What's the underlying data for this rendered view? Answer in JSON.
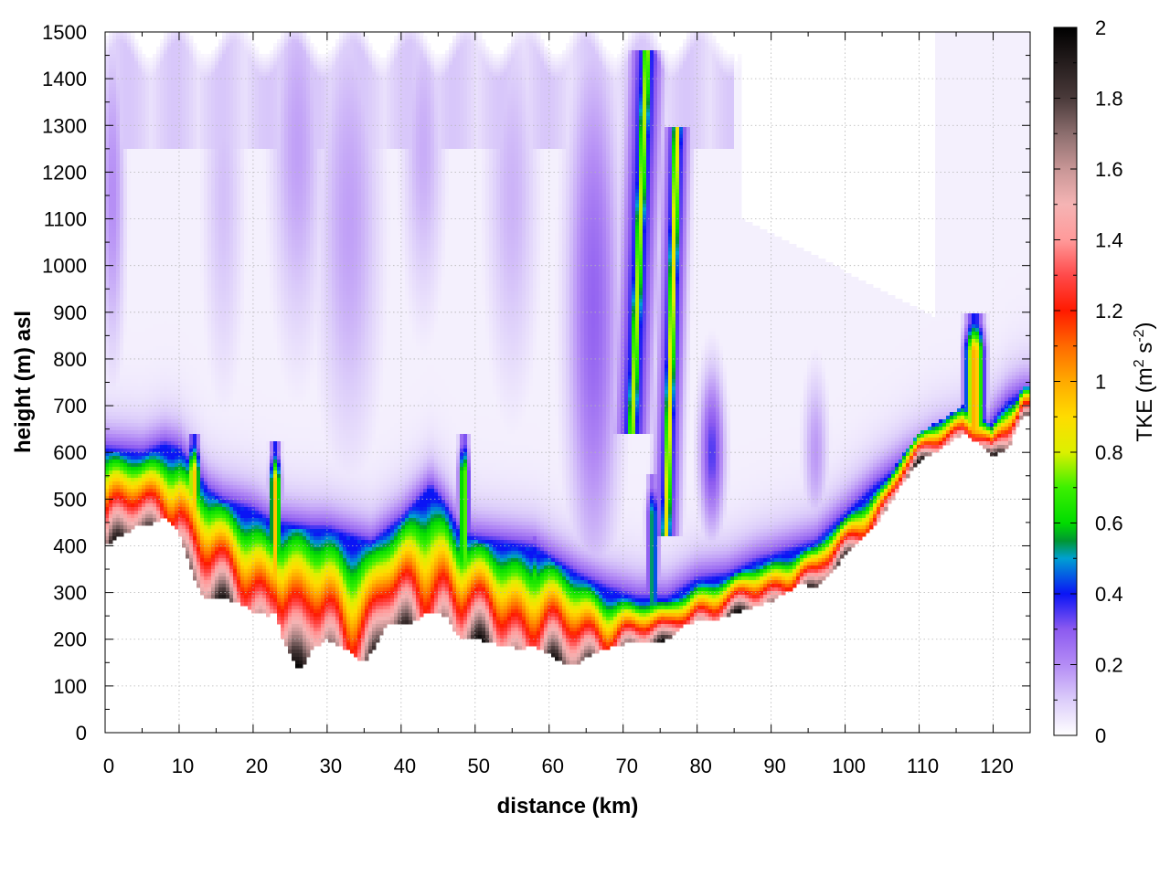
{
  "chart_data": {
    "type": "heatmap",
    "title": "",
    "xlabel": "distance (km)",
    "ylabel": "height (m) asl",
    "xlim": [
      0,
      125
    ],
    "ylim": [
      0,
      1500
    ],
    "x_ticks": [
      0,
      10,
      20,
      30,
      40,
      50,
      60,
      70,
      80,
      90,
      100,
      110,
      120
    ],
    "y_ticks": [
      0,
      100,
      200,
      300,
      400,
      500,
      600,
      700,
      800,
      900,
      1000,
      1100,
      1200,
      1300,
      1400,
      1500
    ],
    "grid": true,
    "colorbar": {
      "label_main": "TKE (m",
      "label_sup1": "2",
      "label_mid": " s",
      "label_sup2": "-2",
      "label_end": ")",
      "range": [
        0,
        2
      ],
      "ticks": [
        "0",
        "0.2",
        "0.4",
        "0.6",
        "0.8",
        "1",
        "1.2",
        "1.4",
        "1.6",
        "1.8",
        "2"
      ],
      "stops": [
        {
          "v": 0.0,
          "color": "#ffffff"
        },
        {
          "v": 0.1,
          "color": "#dccdfa"
        },
        {
          "v": 0.2,
          "color": "#b48cf5"
        },
        {
          "v": 0.3,
          "color": "#8c5af0"
        },
        {
          "v": 0.4,
          "color": "#0a14f5"
        },
        {
          "v": 0.5,
          "color": "#00a0d2"
        },
        {
          "v": 0.55,
          "color": "#009632"
        },
        {
          "v": 0.6,
          "color": "#00dc00"
        },
        {
          "v": 0.7,
          "color": "#3cf000"
        },
        {
          "v": 0.8,
          "color": "#dcf000"
        },
        {
          "v": 0.9,
          "color": "#ffdc00"
        },
        {
          "v": 1.0,
          "color": "#ffaa00"
        },
        {
          "v": 1.1,
          "color": "#ff6a00"
        },
        {
          "v": 1.2,
          "color": "#ff1a00"
        },
        {
          "v": 1.3,
          "color": "#ff4a4a"
        },
        {
          "v": 1.4,
          "color": "#ff9a9a"
        },
        {
          "v": 1.5,
          "color": "#f5b4b4"
        },
        {
          "v": 1.6,
          "color": "#c89696"
        },
        {
          "v": 1.7,
          "color": "#8c6e6e"
        },
        {
          "v": 1.8,
          "color": "#4a3a3a"
        },
        {
          "v": 2.0,
          "color": "#000000"
        }
      ]
    },
    "terrain": {
      "x": [
        0,
        2,
        4,
        6,
        8,
        10,
        12,
        13,
        14,
        16,
        18,
        20,
        22,
        23,
        24,
        25,
        26,
        27,
        28,
        30,
        32,
        34,
        35,
        36,
        38,
        40,
        42,
        44,
        46,
        48,
        50,
        52,
        54,
        56,
        58,
        60,
        62,
        64,
        66,
        68,
        70,
        72,
        74,
        76,
        78,
        80,
        82,
        84,
        86,
        88,
        90,
        92,
        94,
        96,
        98,
        100,
        102,
        104,
        106,
        108,
        110,
        112,
        114,
        116,
        118,
        120,
        122,
        124
      ],
      "h": [
        400,
        420,
        440,
        445,
        460,
        430,
        330,
        300,
        285,
        285,
        280,
        260,
        250,
        255,
        200,
        170,
        140,
        145,
        180,
        200,
        185,
        160,
        150,
        170,
        230,
        230,
        240,
        260,
        250,
        200,
        200,
        195,
        185,
        180,
        185,
        170,
        145,
        150,
        170,
        180,
        190,
        190,
        190,
        200,
        230,
        240,
        240,
        250,
        260,
        270,
        280,
        300,
        320,
        310,
        340,
        380,
        410,
        440,
        490,
        540,
        580,
        600,
        620,
        640,
        620,
        590,
        610,
        680
      ]
    },
    "pbl": {
      "x": [
        0,
        5,
        8,
        10,
        12,
        14,
        16,
        20,
        22,
        24,
        28,
        30,
        34,
        36,
        40,
        44,
        46,
        48,
        50,
        54,
        58,
        60,
        64,
        68,
        72,
        76,
        80,
        84,
        88,
        92,
        96,
        100,
        104,
        108,
        112,
        116,
        118,
        120,
        122,
        124
      ],
      "h": [
        600,
        590,
        610,
        600,
        560,
        510,
        490,
        470,
        450,
        440,
        430,
        430,
        410,
        400,
        450,
        520,
        480,
        420,
        410,
        400,
        390,
        370,
        330,
        300,
        280,
        280,
        320,
        330,
        360,
        380,
        400,
        460,
        520,
        570,
        610,
        630,
        600,
        660,
        700,
        720
      ]
    },
    "plumes": [
      {
        "x": 12,
        "w": 0.6,
        "bottom": 330,
        "top": 640,
        "v": 0.8
      },
      {
        "x": 23,
        "w": 0.5,
        "bottom": 250,
        "top": 620,
        "v": 0.8
      },
      {
        "x": 48.5,
        "w": 0.5,
        "bottom": 200,
        "top": 640,
        "v": 0.6
      },
      {
        "x": 58,
        "w": 0.45,
        "bottom": 180,
        "top": 420,
        "v": 0.5
      },
      {
        "x": 74,
        "w": 0.55,
        "bottom": 190,
        "top": 550,
        "v": 0.4
      },
      {
        "x": 117.5,
        "w": 0.9,
        "bottom": 620,
        "top": 900,
        "v": 0.85
      }
    ],
    "slanted_plumes": [
      {
        "x_bottom": 71.2,
        "x_top": 73.2,
        "bottom": 640,
        "top": 1460,
        "w": 0.9,
        "v": 0.78,
        "halo": 1.6
      },
      {
        "x_bottom": 75.8,
        "x_top": 77.3,
        "bottom": 420,
        "top": 1300,
        "w": 0.8,
        "v": 0.85,
        "halo": 1.2
      }
    ],
    "patches": [
      {
        "x": 1,
        "y": 1150,
        "rx": 1.2,
        "ry": 250,
        "v": 0.2
      },
      {
        "x": 26,
        "y": 1250,
        "rx": 2.5,
        "ry": 300,
        "v": 0.17
      },
      {
        "x": 33,
        "y": 1100,
        "rx": 3,
        "ry": 350,
        "v": 0.17
      },
      {
        "x": 43,
        "y": 1250,
        "rx": 2,
        "ry": 250,
        "v": 0.15
      },
      {
        "x": 66,
        "y": 900,
        "rx": 2.5,
        "ry": 400,
        "v": 0.28
      },
      {
        "x": 82,
        "y": 600,
        "rx": 1.2,
        "ry": 120,
        "v": 0.35
      },
      {
        "x": 96,
        "y": 600,
        "rx": 1.2,
        "ry": 120,
        "v": 0.18
      },
      {
        "x": 16,
        "y": 1150,
        "rx": 2,
        "ry": 300,
        "v": 0.12
      },
      {
        "x": 55,
        "y": 1150,
        "rx": 2.5,
        "ry": 300,
        "v": 0.14
      }
    ]
  }
}
